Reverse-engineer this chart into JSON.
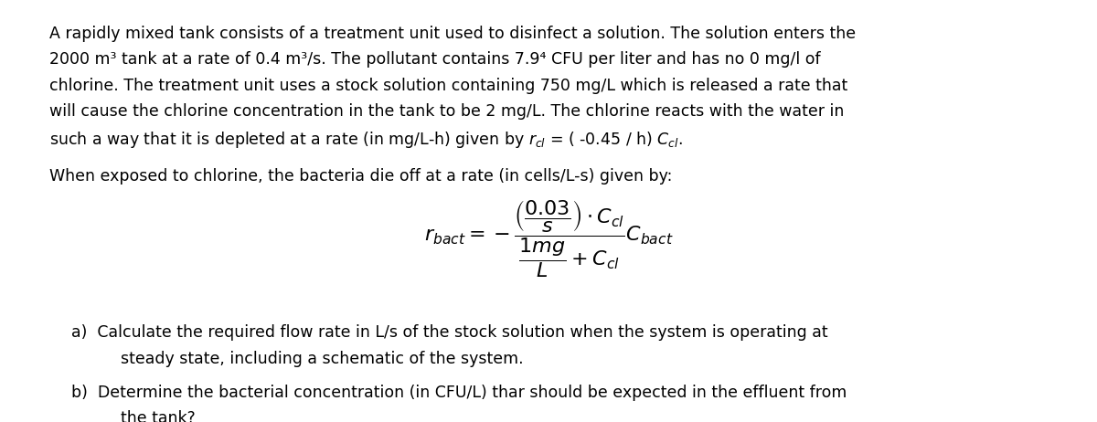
{
  "bg_color": "#ffffff",
  "text_color": "#000000",
  "fig_width": 12.0,
  "fig_height": 4.62,
  "dpi": 100,
  "paragraph1_lines": [
    "A rapidly mixed tank consists of a treatment unit used to disinfect a solution. The solution enters the",
    "2000 m³ tank at a rate of 0.4 m³/s. The pollutant contains 7.9⁴ CFU per liter and has no 0 mg/l of",
    "chlorine. The treatment unit uses a stock solution containing 750 mg/L which is released a rate that",
    "will cause the chlorine concentration in the tank to be 2 mg/L. The chlorine reacts with the water in",
    "such a way that it is depleted at a rate (in mg/L-h) given by rₙ = ( -0.45 / h) Cₙₗ."
  ],
  "paragraph2": "When exposed to chlorine, the bacteria die off at a rate (in cells/L-s) given by:",
  "item_a": "Calculate the required flow rate in L/s of the stock solution when the system is operating at\n      steady state, including a schematic of the system.",
  "item_b": "Determine the bacterial concentration (in CFU/L) thar should be expected in the effluent from\n      the tank?",
  "font_family": "DejaVu Sans",
  "font_size_main": 12.5,
  "font_size_math": 13
}
